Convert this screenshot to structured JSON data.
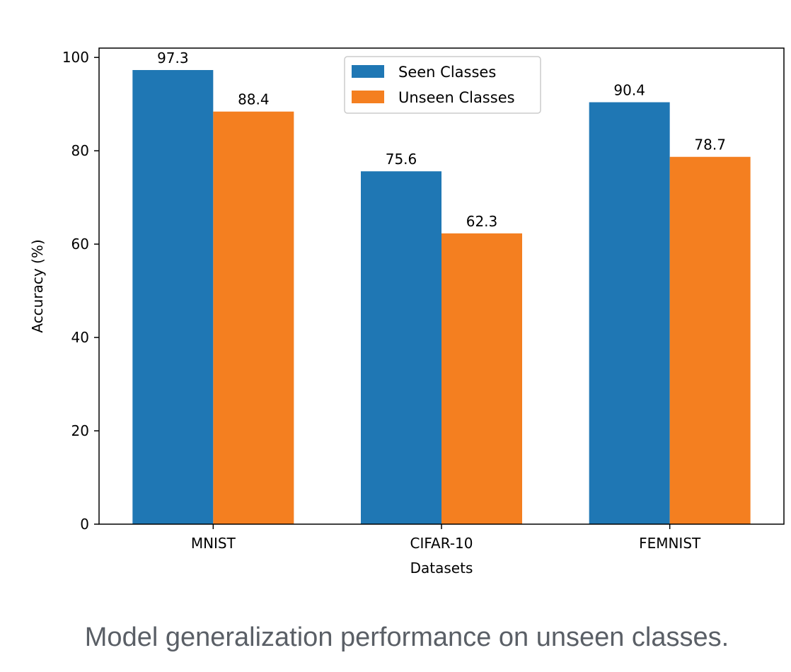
{
  "caption": "Model generalization performance on unseen classes.",
  "colors": {
    "seen": "#1f77b4",
    "unseen": "#f47f20",
    "axis": "#000000"
  },
  "chart_data": {
    "type": "bar",
    "categories": [
      "MNIST",
      "CIFAR-10",
      "FEMNIST"
    ],
    "series": [
      {
        "name": "Seen Classes",
        "values": [
          97.3,
          75.6,
          90.4
        ],
        "labels": [
          "97.3",
          "75.6",
          "90.4"
        ]
      },
      {
        "name": "Unseen Classes",
        "values": [
          88.4,
          62.3,
          78.7
        ],
        "labels": [
          "88.4",
          "62.3",
          "78.7"
        ]
      }
    ],
    "xlabel": "Datasets",
    "ylabel": "Accuracy (%)",
    "ylim": [
      0,
      102
    ],
    "yticks": [
      0,
      20,
      40,
      60,
      80,
      100
    ],
    "ytick_labels": [
      "0",
      "20",
      "40",
      "60",
      "80",
      "100"
    ],
    "grid": false,
    "legend": "top-center"
  }
}
